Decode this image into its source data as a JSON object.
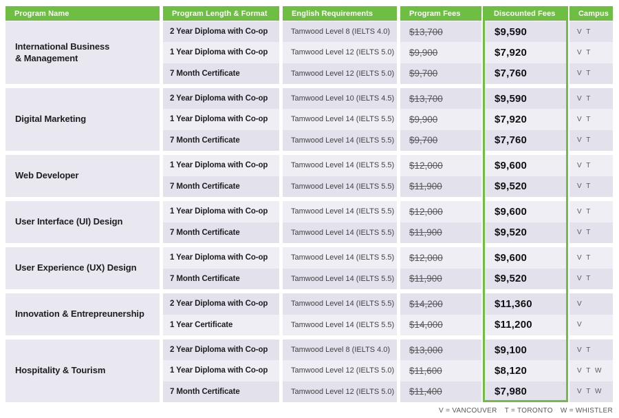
{
  "colors": {
    "accent_green": "#6FBE44",
    "row_dark": "#e3e2ec",
    "row_light": "#efeef5",
    "name_column": "#e9e8f1"
  },
  "header": {
    "columns": [
      "Program Name",
      "Program Length & Format",
      "English Requirements",
      "Program Fees",
      "Discounted Fees",
      "Campus"
    ]
  },
  "groups": [
    {
      "name": "International Business\n& Management",
      "rows": [
        {
          "format": "2 Year Diploma with Co-op",
          "english": "Tamwood Level 8 (IELTS 4.0)",
          "fee": "$13,700",
          "discounted": "$9,590",
          "campus": "V T"
        },
        {
          "format": "1 Year Diploma with Co-op",
          "english": "Tamwood Level 12 (IELTS 5.0)",
          "fee": "$9,900",
          "discounted": "$7,920",
          "campus": "V T"
        },
        {
          "format": "7 Month Certificate",
          "english": "Tamwood Level 12 (IELTS 5.0)",
          "fee": "$9,700",
          "discounted": "$7,760",
          "campus": "V T"
        }
      ]
    },
    {
      "name": "Digital Marketing",
      "rows": [
        {
          "format": "2 Year Diploma with Co-op",
          "english": "Tamwood Level 10 (IELTS 4.5)",
          "fee": "$13,700",
          "discounted": "$9,590",
          "campus": "V T"
        },
        {
          "format": "1 Year Diploma with Co-op",
          "english": "Tamwood Level 14 (IELTS 5.5)",
          "fee": "$9,900",
          "discounted": "$7,920",
          "campus": "V T"
        },
        {
          "format": "7 Month Certificate",
          "english": "Tamwood Level 14 (IELTS 5.5)",
          "fee": "$9,700",
          "discounted": "$7,760",
          "campus": "V T"
        }
      ]
    },
    {
      "name": "Web Developer",
      "rows": [
        {
          "format": "1 Year Diploma with Co-op",
          "english": "Tamwood Level 14 (IELTS 5.5)",
          "fee": "$12,000",
          "discounted": "$9,600",
          "campus": "V T"
        },
        {
          "format": "7 Month Certificate",
          "english": "Tamwood Level 14 (IELTS 5.5)",
          "fee": "$11,900",
          "discounted": "$9,520",
          "campus": "V T"
        }
      ]
    },
    {
      "name": "User Interface (UI) Design",
      "rows": [
        {
          "format": "1 Year Diploma with Co-op",
          "english": "Tamwood Level 14 (IELTS 5.5)",
          "fee": "$12,000",
          "discounted": "$9,600",
          "campus": "V T"
        },
        {
          "format": "7 Month Certificate",
          "english": "Tamwood Level 14 (IELTS 5.5)",
          "fee": "$11,900",
          "discounted": "$9,520",
          "campus": "V T"
        }
      ]
    },
    {
      "name": "User Experience (UX) Design",
      "rows": [
        {
          "format": "1 Year Diploma with Co-op",
          "english": "Tamwood Level 14 (IELTS 5.5)",
          "fee": "$12,000",
          "discounted": "$9,600",
          "campus": "V T"
        },
        {
          "format": "7 Month Certificate",
          "english": "Tamwood Level 14 (IELTS 5.5)",
          "fee": "$11,900",
          "discounted": "$9,520",
          "campus": "V T"
        }
      ]
    },
    {
      "name": "Innovation & Entrepreunership",
      "rows": [
        {
          "format": "2 Year Diploma with Co-op",
          "english": "Tamwood Level 14 (IELTS 5.5)",
          "fee": "$14,200",
          "discounted": "$11,360",
          "campus": "V"
        },
        {
          "format": "1 Year Certificate",
          "english": "Tamwood Level 14 (IELTS 5.5)",
          "fee": "$14,000",
          "discounted": "$11,200",
          "campus": "V"
        }
      ]
    },
    {
      "name": "Hospitality & Tourism",
      "rows": [
        {
          "format": "2 Year Diploma with Co-op",
          "english": "Tamwood Level 8 (IELTS 4.0)",
          "fee": "$13,000",
          "discounted": "$9,100",
          "campus": "V T"
        },
        {
          "format": "1 Year Diploma with Co-op",
          "english": "Tamwood Level 12 (IELTS 5.0)",
          "fee": "$11,600",
          "discounted": "$8,120",
          "campus": "V T W"
        },
        {
          "format": "7 Month Certificate",
          "english": "Tamwood Level 12 (IELTS 5.0)",
          "fee": "$11,400",
          "discounted": "$7,980",
          "campus": "V T W"
        }
      ]
    }
  ],
  "legend": {
    "items": [
      "V = VANCOUVER",
      "T = TORONTO",
      "W = WHISTLER"
    ]
  }
}
